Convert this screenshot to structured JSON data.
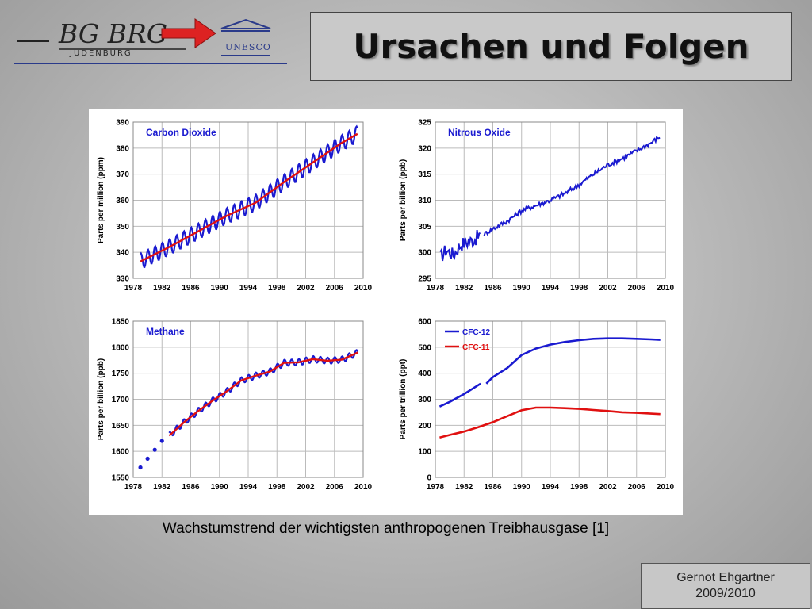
{
  "header": {
    "logo": {
      "school_text": "BG BRG",
      "city_text": "JUDENBURG",
      "unesco_text": "UNESCO"
    },
    "title": "Ursachen und Folgen"
  },
  "caption": "Wachstumstrend der wichtigsten anthropogenen Treibhausgase [1]",
  "footer": {
    "author": "Gernot Ehgartner",
    "year": "2009/2010"
  },
  "colors": {
    "series_blue": "#1a1ad0",
    "trend_red": "#e01010",
    "grid": "#bbbbbb"
  },
  "chart_data": [
    {
      "type": "line",
      "title": "Carbon Dioxide",
      "ylabel": "Parts per million (ppm)",
      "xlim": [
        1978,
        2010
      ],
      "ylim": [
        330,
        390
      ],
      "xticks": [
        "1978",
        "1982",
        "1986",
        "1990",
        "1994",
        "1998",
        "2002",
        "2006",
        "2010"
      ],
      "yticks": [
        "330",
        "340",
        "350",
        "360",
        "370",
        "380",
        "390"
      ],
      "grid": true,
      "series": [
        {
          "style": "seasonal",
          "color": "#1a1ad0",
          "x": [
            1979,
            1983,
            1987,
            1991,
            1995,
            1999,
            2003,
            2007,
            2009.2
          ],
          "y": [
            336.5,
            342,
            348,
            354,
            359,
            367,
            374.5,
            382,
            385.5
          ],
          "amplitude": 3
        },
        {
          "style": "trend",
          "color": "#e01010",
          "x": [
            1979,
            1983,
            1987,
            1991,
            1995,
            1999,
            2003,
            2007,
            2009.2
          ],
          "y": [
            336.5,
            342,
            348,
            354,
            359,
            367,
            374.5,
            382,
            385.5
          ]
        }
      ]
    },
    {
      "type": "line",
      "title": "Nitrous Oxide",
      "ylabel": "Parts per billion (ppb)",
      "xlim": [
        1978,
        2010
      ],
      "ylim": [
        295,
        325
      ],
      "xticks": [
        "1978",
        "1982",
        "1986",
        "1990",
        "1994",
        "1998",
        "2002",
        "2006",
        "2010"
      ],
      "yticks": [
        "295",
        "300",
        "305",
        "310",
        "315",
        "320",
        "325"
      ],
      "grid": true,
      "series": [
        {
          "style": "noisy",
          "color": "#1a1ad0",
          "segments": [
            {
              "x": [
                1978.7,
                1979.5,
                1980.5,
                1981.5,
                1982.5,
                1983.5,
                1984.3
              ],
              "y": [
                299,
                300.5,
                299.5,
                301.5,
                302,
                302.5,
                303.5
              ]
            },
            {
              "x": [
                1984.8,
                1986,
                1988,
                1990,
                1992,
                1994,
                1996,
                1998,
                2000,
                2002,
                2004,
                2006,
                2008,
                2009.3
              ],
              "y": [
                303.5,
                304.5,
                306,
                308,
                309,
                310,
                311.3,
                313,
                315,
                316.8,
                318,
                319.5,
                321,
                322.3
              ]
            }
          ]
        }
      ]
    },
    {
      "type": "line",
      "title": "Methane",
      "ylabel": "Parts per billion (ppb)",
      "xlim": [
        1978,
        2010
      ],
      "ylim": [
        1550,
        1850
      ],
      "xticks": [
        "1978",
        "1982",
        "1986",
        "1990",
        "1994",
        "1998",
        "2002",
        "2006",
        "2010"
      ],
      "yticks": [
        "1550",
        "1600",
        "1650",
        "1700",
        "1750",
        "1800",
        "1850"
      ],
      "grid": true,
      "series": [
        {
          "style": "points",
          "color": "#1a1ad0",
          "x": [
            1979,
            1980,
            1981,
            1982
          ],
          "y": [
            1569,
            1586,
            1603,
            1620
          ]
        },
        {
          "style": "seasonal",
          "color": "#1a1ad0",
          "x": [
            1983,
            1985,
            1987,
            1989,
            1991,
            1993,
            1995,
            1997,
            1999,
            2001,
            2003,
            2005,
            2007,
            2009.3
          ],
          "y": [
            1630,
            1655,
            1677,
            1697,
            1715,
            1736,
            1745,
            1753,
            1770,
            1771,
            1777,
            1774,
            1776,
            1790
          ],
          "amplitude": 6
        },
        {
          "style": "trend",
          "color": "#e01010",
          "x": [
            1983,
            1985,
            1987,
            1989,
            1991,
            1993,
            1995,
            1997,
            1999,
            2001,
            2003,
            2005,
            2007,
            2009.3
          ],
          "y": [
            1630,
            1655,
            1677,
            1697,
            1715,
            1736,
            1745,
            1753,
            1770,
            1771,
            1777,
            1774,
            1776,
            1790
          ]
        }
      ]
    },
    {
      "type": "line",
      "title": "",
      "ylabel": "Parts per trillion (ppt)",
      "xlim": [
        1978,
        2010
      ],
      "ylim": [
        0,
        600
      ],
      "xticks": [
        "1978",
        "1982",
        "1986",
        "1990",
        "1994",
        "1998",
        "2002",
        "2006",
        "2010"
      ],
      "yticks": [
        "0",
        "100",
        "200",
        "300",
        "400",
        "500",
        "600"
      ],
      "grid": true,
      "legend": "top-left",
      "series": [
        {
          "name": "CFC-12",
          "style": "smooth",
          "color": "#1a1ad0",
          "segments": [
            {
              "x": [
                1978.6,
                1980,
                1982,
                1984.3
              ],
              "y": [
                272,
                290,
                320,
                360
              ]
            },
            {
              "x": [
                1985.1,
                1986,
                1988,
                1990,
                1992,
                1994,
                1996,
                1998,
                2000,
                2002,
                2004,
                2006,
                2008,
                2009.3
              ],
              "y": [
                360,
                385,
                420,
                470,
                495,
                510,
                520,
                527,
                532,
                534,
                534,
                532,
                530,
                528
              ]
            }
          ]
        },
        {
          "name": "CFC-11",
          "style": "smooth",
          "color": "#e01010",
          "segments": [
            {
              "x": [
                1978.6,
                1980,
                1982,
                1984,
                1986,
                1988,
                1990,
                1992,
                1994,
                1996,
                1998,
                2000,
                2002,
                2004,
                2006,
                2008,
                2009.3
              ],
              "y": [
                153,
                163,
                176,
                193,
                212,
                235,
                258,
                268,
                268,
                266,
                263,
                259,
                255,
                250,
                248,
                245,
                243
              ]
            }
          ]
        }
      ]
    }
  ]
}
